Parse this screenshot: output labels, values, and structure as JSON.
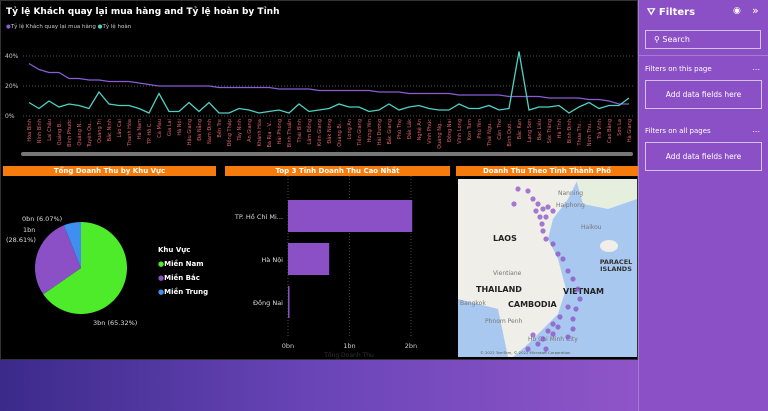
{
  "line_chart": {
    "title": "Tỷ lệ Khách quay lại mua hàng and Tỷ lệ hoàn by Tỉnh",
    "legend": [
      {
        "name": "Tỷ lệ Khách quay lại mua hàng",
        "color": "#8b5cd6"
      },
      {
        "name": "Tỷ lệ hoàn",
        "color": "#4fd1c5"
      }
    ],
    "y_ticks": [
      "0%",
      "20%",
      "40%"
    ],
    "categories": [
      "Hòa Bình",
      "Ninh Bình",
      "Lai Châu",
      "Quảng B...",
      "Bình Phước",
      "Quảng N...",
      "Tuyên Qu...",
      "Quảng Trị",
      "Bắc Ninh",
      "Lào Cai",
      "Thanh Hóa",
      "Hà Nam",
      "TP. Hồ C...",
      "Cà Mau",
      "Gia Lai",
      "Hà Nội",
      "Hậu Giang",
      "Đà Nẵng",
      "Nam Định",
      "Bến Tre",
      "Đồng Tháp",
      "Tây Ninh",
      "An Giang",
      "Khánh Hòa",
      "Bà Rịa - V...",
      "Hải Phòng",
      "Bình Thuận",
      "Thái Bình",
      "Lâm Đồng",
      "Kiên Giang",
      "Đắk Nông",
      "Quảng Bi...",
      "Long An",
      "Tiền Giang",
      "Hưng Yên",
      "Hải Dương",
      "Bắc Giang",
      "Phú Thọ",
      "Đắk Lắk",
      "Nghệ An",
      "Vĩnh Phúc",
      "Quảng Ng...",
      "Đồng Nai",
      "Vĩnh Long",
      "Kon Tum",
      "Phú Yên",
      "Thái Ngu...",
      "Cần Thơ",
      "Bình Dươ...",
      "Bắc Kạn",
      "Lạng Sơn",
      "Bạc Liêu",
      "Sóc Trăng",
      "Hà Tĩnh",
      "Bình Định",
      "Thừa Thi...",
      "Ninh Thu...",
      "Trà Vinh",
      "Cao Bằng",
      "Sơn La",
      "Hà Giang"
    ],
    "series_repeat": [
      35,
      31,
      29,
      29,
      25,
      25,
      24,
      24,
      23,
      23,
      23,
      22,
      21,
      20,
      20,
      20,
      20,
      20,
      20,
      19,
      19,
      19,
      19,
      19,
      19,
      18,
      18,
      18,
      18,
      17,
      17,
      17,
      17,
      17,
      17,
      16,
      16,
      16,
      15,
      15,
      15,
      15,
      15,
      14,
      14,
      14,
      14,
      14,
      13,
      13,
      13,
      13,
      12,
      12,
      12,
      12,
      11,
      11,
      10,
      8,
      8
    ],
    "series_return": [
      9,
      5,
      10,
      6,
      8,
      7,
      5,
      16,
      8,
      7,
      7,
      5,
      2,
      15,
      3,
      3,
      9,
      3,
      9,
      2,
      2,
      5,
      4,
      2,
      3,
      4,
      2,
      8,
      3,
      4,
      5,
      8,
      6,
      6,
      3,
      4,
      8,
      4,
      6,
      7,
      5,
      4,
      4,
      8,
      5,
      5,
      7,
      4,
      5,
      43,
      4,
      6,
      6,
      7,
      2,
      6,
      9,
      5,
      7,
      7,
      12
    ]
  },
  "chart_data": [
    {
      "type": "line",
      "title": "Tỷ lệ Khách quay lại mua hàng and Tỷ lệ hoàn by Tỉnh",
      "ylim": [
        0,
        45
      ],
      "grid": true,
      "legend": "top-left"
    },
    {
      "type": "pie",
      "title": "Tổng Doanh Thu by Khu Vực",
      "legend_title": "Khu Vực",
      "slices": [
        {
          "name": "Miền Nam",
          "value": 65.32,
          "label": "3bn (65.32%)",
          "color": "#4deb2a"
        },
        {
          "name": "Miền Bắc",
          "value": 28.61,
          "label": "1bn (28.61%)",
          "color": "#8b50c6"
        },
        {
          "name": "Miền Trung",
          "value": 6.07,
          "label": "0bn (6.07%)",
          "color": "#3f8ff0"
        }
      ]
    },
    {
      "type": "bar",
      "title": "Top 3 Tỉnh Doanh Thu Cao Nhất",
      "categories": [
        "TP. Hồ Chí Mi...",
        "Hà Nội",
        "Đồng Nai"
      ],
      "values": [
        2.02,
        0.67,
        0.02
      ],
      "x_ticks": [
        "0bn",
        "1bn",
        "2bn"
      ],
      "xlim": [
        0,
        2.1
      ],
      "xlabel": "Tổng Doanh Thu",
      "color": "#8b50c6"
    }
  ],
  "map": {
    "title": "Doanh Thu Theo Tỉnh Thành Phố",
    "labels": [
      "LAOS",
      "THAILAND",
      "CAMBODIA",
      "VIETNAM",
      "PARACEL ISLANDS",
      "Nanning",
      "Haiphong",
      "Haikou",
      "Vientiane",
      "Bangkok",
      "Phnom Penh",
      "Ho Chi Minh City"
    ],
    "attribution": "© 2022 TomTom, © 2022 Microsoft Corporation"
  },
  "filters": {
    "title": "Filters",
    "search_placeholder": "Search",
    "this_page": "Filters on this page",
    "all_pages": "Filters on all pages",
    "add_fields": "Add data fields here",
    "more": "..."
  }
}
